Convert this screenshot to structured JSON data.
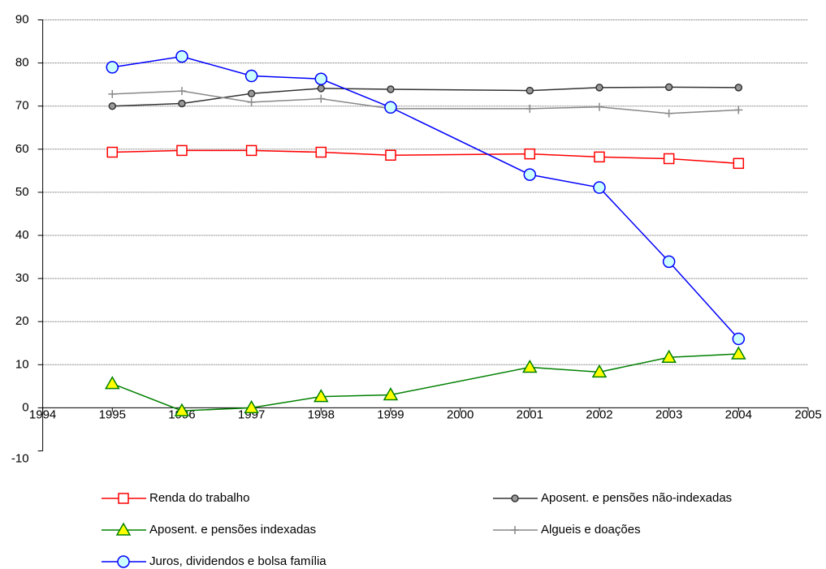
{
  "chart_data": {
    "type": "line",
    "x": [
      1995,
      1996,
      1997,
      1998,
      1999,
      2001,
      2002,
      2003,
      2004
    ],
    "xlim": [
      1994,
      2005
    ],
    "xticks": [
      1994,
      1995,
      1996,
      1997,
      1998,
      1999,
      2000,
      2001,
      2002,
      2003,
      2004,
      2005
    ],
    "ylim": [
      -10,
      90
    ],
    "yticks": [
      -10,
      0,
      10,
      20,
      30,
      40,
      50,
      60,
      70,
      80,
      90
    ],
    "grid": true,
    "legend": "bottom",
    "series": [
      {
        "name": "Renda do trabalho",
        "color": "#ff0000",
        "marker": "square",
        "marker_fill": "#ffffff",
        "values": [
          59.3,
          59.7,
          59.7,
          59.3,
          58.6,
          58.9,
          58.2,
          57.8,
          56.7
        ]
      },
      {
        "name": "Aposent. e pensões não-indexadas",
        "color": "#333333",
        "marker": "dot",
        "marker_fill": "#999999",
        "values": [
          70.0,
          70.6,
          72.9,
          74.1,
          73.9,
          73.6,
          74.3,
          74.4,
          74.3
        ]
      },
      {
        "name": "Aposent. e pensões indexadas",
        "color": "#008000",
        "marker": "triangle",
        "marker_fill": "#ffff00",
        "values": [
          5.6,
          -0.7,
          0,
          2.6,
          3.0,
          9.4,
          8.3,
          11.7,
          12.5
        ]
      },
      {
        "name": "Algueis e doações",
        "color": "#888888",
        "marker": "plus",
        "marker_fill": "#888888",
        "values": [
          72.8,
          73.5,
          70.9,
          71.7,
          69.4,
          69.4,
          69.8,
          68.3,
          69.1
        ]
      },
      {
        "name": "Juros, dividendos e bolsa família",
        "color": "#0000ff",
        "marker": "circle",
        "marker_fill": "#ccffff",
        "values": [
          79.0,
          81.5,
          77.0,
          76.3,
          69.7,
          54.1,
          51.1,
          33.9,
          16.0
        ]
      }
    ]
  }
}
